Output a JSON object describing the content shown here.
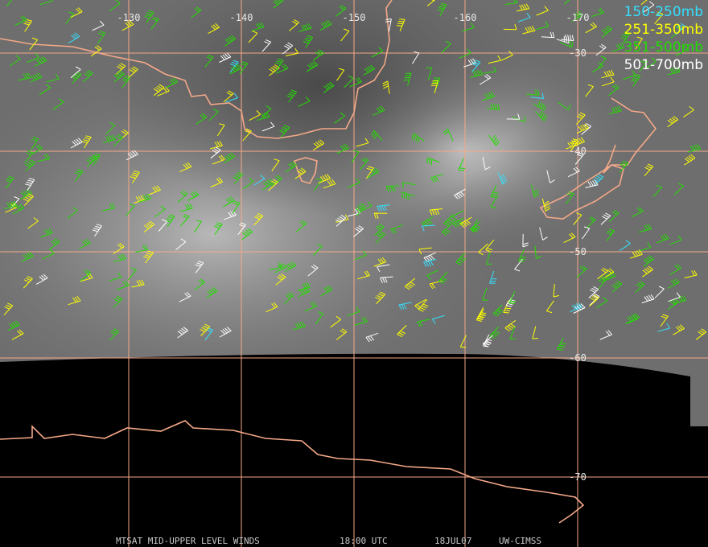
{
  "map": {
    "longitude_labels": [
      "-130",
      "-140",
      "-150",
      "-160",
      "-170"
    ],
    "latitude_labels": [
      "-30",
      "-40",
      "-50",
      "-60",
      "-70"
    ],
    "legend": [
      {
        "label": "150-250mb",
        "color": "#33e0ff"
      },
      {
        "label": "251-350mb",
        "color": "#ffff00"
      },
      {
        "label": "351-500mb",
        "color": "#22dd00"
      },
      {
        "label": "501-700mb",
        "color": "#ffffff"
      }
    ],
    "footer": {
      "product": "MTSAT MID-UPPER LEVEL WINDS",
      "time": "18:00 UTC",
      "date": "18JUL07",
      "source": "UW-CIMSS"
    }
  }
}
